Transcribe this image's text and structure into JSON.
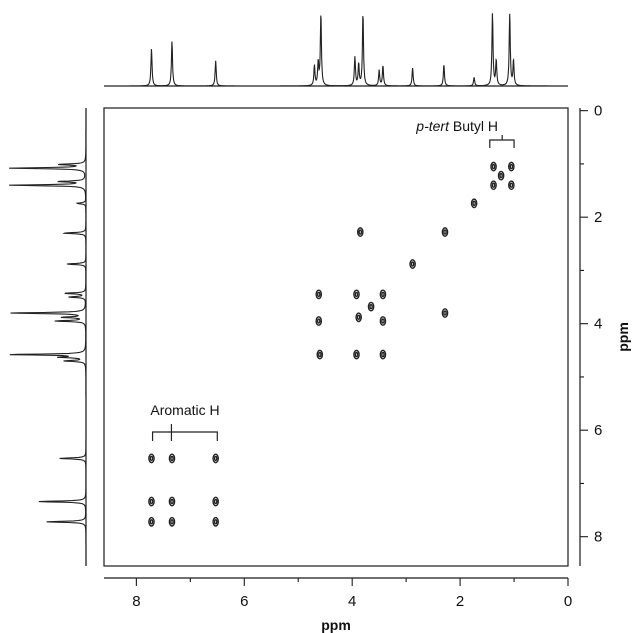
{
  "chart_data": {
    "type": "contour",
    "x": {
      "label": "ppm",
      "range": [
        8.6,
        0.0
      ],
      "ticks": [
        8,
        6,
        4,
        2,
        0
      ],
      "tick_labels": [
        "8",
        "6",
        "4",
        "2",
        "0"
      ]
    },
    "y": {
      "label": "ppm",
      "range": [
        -0.05,
        8.55
      ],
      "ticks": [
        0,
        2,
        4,
        6,
        8
      ],
      "tick_labels": [
        "0",
        "2",
        "4",
        "6",
        "8"
      ],
      "position": "right"
    },
    "annotations": [
      {
        "prefix": "p-tert",
        "suffix": " Butyl H",
        "bracket_ppm": [
          1.45,
          1.0
        ],
        "stem_ppm": 1.22
      },
      {
        "text": "Aromatic H",
        "bracket_ppm": [
          7.7,
          6.5
        ],
        "stem_ppm": 7.35
      }
    ],
    "projection_peaks": [
      {
        "ppm": 7.72,
        "height": 0.52
      },
      {
        "ppm": 7.34,
        "height": 0.62
      },
      {
        "ppm": 6.53,
        "height": 0.35
      },
      {
        "ppm": 4.7,
        "height": 0.28
      },
      {
        "ppm": 4.63,
        "height": 0.32
      },
      {
        "ppm": 4.58,
        "height": 1.0
      },
      {
        "ppm": 3.95,
        "height": 0.4
      },
      {
        "ppm": 3.88,
        "height": 0.3
      },
      {
        "ppm": 3.8,
        "height": 1.0
      },
      {
        "ppm": 3.5,
        "height": 0.22
      },
      {
        "ppm": 3.43,
        "height": 0.28
      },
      {
        "ppm": 2.88,
        "height": 0.25
      },
      {
        "ppm": 2.3,
        "height": 0.3
      },
      {
        "ppm": 1.74,
        "height": 0.12
      },
      {
        "ppm": 1.4,
        "height": 1.0
      },
      {
        "ppm": 1.33,
        "height": 0.35
      },
      {
        "ppm": 1.08,
        "height": 1.0
      },
      {
        "ppm": 1.01,
        "height": 0.35
      }
    ],
    "cross_peaks": [
      {
        "x": 7.72,
        "y": 6.53
      },
      {
        "x": 7.34,
        "y": 6.53
      },
      {
        "x": 6.53,
        "y": 6.53
      },
      {
        "x": 7.72,
        "y": 7.34
      },
      {
        "x": 7.34,
        "y": 7.34
      },
      {
        "x": 6.53,
        "y": 7.34
      },
      {
        "x": 7.72,
        "y": 7.72
      },
      {
        "x": 7.34,
        "y": 7.72
      },
      {
        "x": 6.53,
        "y": 7.72
      },
      {
        "x": 4.62,
        "y": 3.45
      },
      {
        "x": 3.92,
        "y": 3.45
      },
      {
        "x": 3.43,
        "y": 3.45
      },
      {
        "x": 4.62,
        "y": 3.95
      },
      {
        "x": 3.88,
        "y": 3.88
      },
      {
        "x": 3.43,
        "y": 3.95
      },
      {
        "x": 4.6,
        "y": 4.58
      },
      {
        "x": 3.92,
        "y": 4.58
      },
      {
        "x": 3.43,
        "y": 4.58
      },
      {
        "x": 3.85,
        "y": 2.28
      },
      {
        "x": 2.28,
        "y": 2.28
      },
      {
        "x": 2.28,
        "y": 3.8
      },
      {
        "x": 2.88,
        "y": 2.88
      },
      {
        "x": 1.74,
        "y": 1.74
      },
      {
        "x": 3.65,
        "y": 3.68
      },
      {
        "x": 1.38,
        "y": 1.05
      },
      {
        "x": 1.05,
        "y": 1.05
      },
      {
        "x": 1.38,
        "y": 1.4
      },
      {
        "x": 1.05,
        "y": 1.4
      },
      {
        "x": 1.24,
        "y": 1.22
      }
    ]
  }
}
